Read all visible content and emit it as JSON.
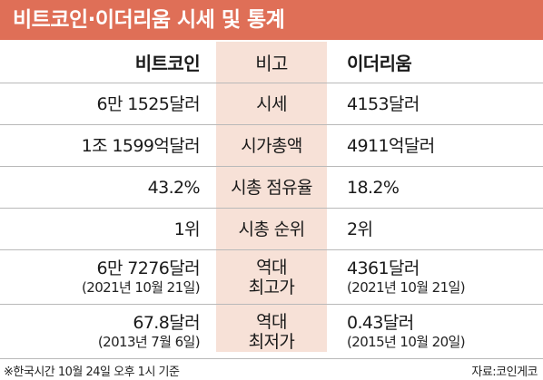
{
  "title": "비트코인·이더리움 시세 및 통계",
  "headers": {
    "left": "비트코인",
    "center": "비고",
    "right": "이더리움"
  },
  "rows": [
    {
      "left": "6만 1525달러",
      "center": "시세",
      "right": "4153달러"
    },
    {
      "left": "1조 1599억달러",
      "center": "시가총액",
      "right": "4911억달러"
    },
    {
      "left": "43.2%",
      "center": "시총 점유율",
      "right": "18.2%"
    },
    {
      "left": "1위",
      "center": "시총 순위",
      "right": "2위"
    },
    {
      "left": "6만 7276달러",
      "left_sub": "(2021년 10월 21일)",
      "center": "역대",
      "center_sub": "최고가",
      "right": "4361달러",
      "right_sub": "(2021년 10월 21일)"
    },
    {
      "left": "67.8달러",
      "left_sub": "(2013년 7월 6일)",
      "center": "역대",
      "center_sub": "최저가",
      "right": "0.43달러",
      "right_sub": "(2015년 10월 20일)"
    }
  ],
  "footer": {
    "note": "※한국시간 10월 24일 오후 1시 기준",
    "source": "자료:코인게코"
  },
  "colors": {
    "title_bg": "#df6f57",
    "band_bg": "#f7e1d7",
    "rule": "#b9b9b9"
  }
}
